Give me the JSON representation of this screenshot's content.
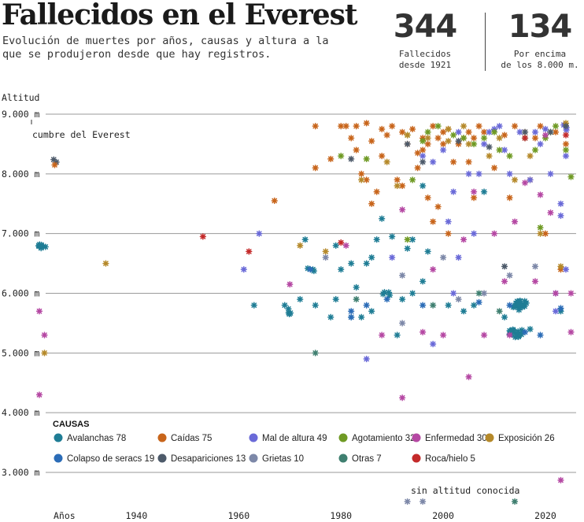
{
  "header": {
    "title": "Fallecidos en el Everest",
    "subtitle": "Evolución de muertes por años, causas y altura a la que se produjeron desde que hay registros."
  },
  "stats": [
    {
      "value": "344",
      "label": "Fallecidos\ndesde 1921"
    },
    {
      "value": "134",
      "label": "Por encima\nde los 8.000 m."
    }
  ],
  "colors": {
    "Avalanchas": "#1f7d95",
    "Caídas": "#c8651b",
    "Mal de altura": "#6a6ad8",
    "Agotamiento": "#6f9a24",
    "Enfermedad": "#b548a3",
    "Exposición": "#b5892a",
    "Colapso de seracs": "#2b6cb7",
    "Desapariciones": "#4d5a6a",
    "Grietas": "#7d88a8",
    "Otras": "#3f7f70",
    "Roca/hielo": "#c42a2a"
  },
  "chart_data": {
    "type": "scatter",
    "ylabel": "Altitud",
    "y_ticks": [
      "9.000 m",
      "8.000 m",
      "7.000 m",
      "6.000 m",
      "5.000 m",
      "4.000 m",
      "3.000 m"
    ],
    "x_ticks": [
      "Años",
      "1940",
      "1960",
      "1980",
      "2000",
      "2020"
    ],
    "ylim": [
      2700,
      9100
    ],
    "xlim": [
      1920,
      2027
    ],
    "annotations": {
      "summit": "cumbre del Everest",
      "unknown": "sin altitud conocida"
    },
    "legend_title": "CAUSAS",
    "legend": [
      {
        "name": "Avalanchas",
        "count": "78"
      },
      {
        "name": "Caídas",
        "count": "75"
      },
      {
        "name": "Mal de altura",
        "count": "49"
      },
      {
        "name": "Agotamiento",
        "count": "32"
      },
      {
        "name": "Enfermedad",
        "count": "30"
      },
      {
        "name": "Exposición",
        "count": "26"
      },
      {
        "name": "Colapso de seracs",
        "count": "19"
      },
      {
        "name": "Desapariciones",
        "count": "13"
      },
      {
        "name": "Grietas",
        "count": "10"
      },
      {
        "name": "Otras",
        "count": "7"
      },
      {
        "name": "Roca/hielo",
        "count": "5"
      }
    ],
    "clusters": [
      {
        "cause": "Avalanchas",
        "x": 1921.5,
        "y": 6800,
        "n": 7
      },
      {
        "cause": "Avalanchas",
        "x": 2014,
        "y": 5350,
        "n": 16
      },
      {
        "cause": "Avalanchas",
        "x": 2015,
        "y": 5800,
        "n": 18
      },
      {
        "cause": "Avalanchas",
        "x": 1970,
        "y": 5700,
        "n": 4
      },
      {
        "cause": "Avalanchas",
        "x": 1974,
        "y": 6400,
        "n": 3
      },
      {
        "cause": "Avalanchas",
        "x": 1989,
        "y": 6000,
        "n": 4
      },
      {
        "cause": "Desapariciones",
        "x": 1924,
        "y": 8200,
        "n": 2
      },
      {
        "cause": "Mal de altura",
        "x": 2024,
        "y": 8780,
        "n": 4
      }
    ],
    "points": [
      [
        "Avalanchas",
        1979,
        6800
      ],
      [
        "Avalanchas",
        1982,
        5600
      ],
      [
        "Avalanchas",
        1985,
        6500
      ],
      [
        "Avalanchas",
        1986,
        6600
      ],
      [
        "Avalanchas",
        1987,
        6900
      ],
      [
        "Avalanchas",
        1988,
        7250
      ],
      [
        "Avalanchas",
        1990,
        6950
      ],
      [
        "Avalanchas",
        1993,
        6750
      ],
      [
        "Avalanchas",
        1994,
        6900
      ],
      [
        "Avalanchas",
        1996,
        7800
      ],
      [
        "Avalanchas",
        1997,
        6700
      ],
      [
        "Avalanchas",
        1982,
        6500
      ],
      [
        "Avalanchas",
        1984,
        5600
      ],
      [
        "Avalanchas",
        1992,
        5900
      ],
      [
        "Avalanchas",
        1996,
        6200
      ],
      [
        "Avalanchas",
        1978,
        5600
      ],
      [
        "Avalanchas",
        1979,
        5900
      ],
      [
        "Avalanchas",
        1980,
        6400
      ],
      [
        "Avalanchas",
        1973,
        6900
      ],
      [
        "Avalanchas",
        1972,
        5900
      ],
      [
        "Avalanchas",
        1975,
        5800
      ],
      [
        "Avalanchas",
        1983,
        6100
      ],
      [
        "Avalanchas",
        1986,
        5700
      ],
      [
        "Avalanchas",
        1991,
        5300
      ],
      [
        "Avalanchas",
        2001,
        5800
      ],
      [
        "Avalanchas",
        2006,
        5800
      ],
      [
        "Avalanchas",
        2008,
        7700
      ],
      [
        "Avalanchas",
        2012,
        5600
      ],
      [
        "Avalanchas",
        2017,
        5400
      ],
      [
        "Avalanchas",
        2023,
        5700
      ],
      [
        "Avalanchas",
        2004,
        5700
      ],
      [
        "Avalanchas",
        1969,
        5800
      ],
      [
        "Avalanchas",
        1963,
        5800
      ],
      [
        "Avalanchas",
        1994,
        6000
      ],
      [
        "Caídas",
        1924,
        8150
      ],
      [
        "Caídas",
        1975,
        8800
      ],
      [
        "Caídas",
        1975,
        8100
      ],
      [
        "Caídas",
        1967,
        7550
      ],
      [
        "Caídas",
        1978,
        8250
      ],
      [
        "Caídas",
        1980,
        8800
      ],
      [
        "Caídas",
        1981,
        8800
      ],
      [
        "Caídas",
        1982,
        8600
      ],
      [
        "Caídas",
        1983,
        8400
      ],
      [
        "Caídas",
        1984,
        8000
      ],
      [
        "Caídas",
        1985,
        8850
      ],
      [
        "Caídas",
        1985,
        7900
      ],
      [
        "Caídas",
        1986,
        7500
      ],
      [
        "Caídas",
        1986,
        8550
      ],
      [
        "Caídas",
        1988,
        8300
      ],
      [
        "Caídas",
        1988,
        8750
      ],
      [
        "Caídas",
        1990,
        8800
      ],
      [
        "Caídas",
        1991,
        7900
      ],
      [
        "Caídas",
        1992,
        8700
      ],
      [
        "Caídas",
        1992,
        7800
      ],
      [
        "Caídas",
        1993,
        8500
      ],
      [
        "Caídas",
        1994,
        8750
      ],
      [
        "Caídas",
        1995,
        8100
      ],
      [
        "Caídas",
        1996,
        8600
      ],
      [
        "Caídas",
        1996,
        8400
      ],
      [
        "Caídas",
        1997,
        8500
      ],
      [
        "Caídas",
        1997,
        7600
      ],
      [
        "Caídas",
        1998,
        8800
      ],
      [
        "Caídas",
        1998,
        7200
      ],
      [
        "Caídas",
        1999,
        8600
      ],
      [
        "Caídas",
        2000,
        8700
      ],
      [
        "Caídas",
        2000,
        8500
      ],
      [
        "Caídas",
        2001,
        8750
      ],
      [
        "Caídas",
        2001,
        7000
      ],
      [
        "Caídas",
        2002,
        8200
      ],
      [
        "Caídas",
        2003,
        8500
      ],
      [
        "Caídas",
        2004,
        8600
      ],
      [
        "Caídas",
        2005,
        8700
      ],
      [
        "Caídas",
        2005,
        8200
      ],
      [
        "Caídas",
        2006,
        8600
      ],
      [
        "Caídas",
        2006,
        7600
      ],
      [
        "Caídas",
        2007,
        8800
      ],
      [
        "Caídas",
        2008,
        8700
      ],
      [
        "Caídas",
        2010,
        8100
      ],
      [
        "Caídas",
        2012,
        8650
      ],
      [
        "Caídas",
        2013,
        7600
      ],
      [
        "Caídas",
        2014,
        8800
      ],
      [
        "Caídas",
        2016,
        8700
      ],
      [
        "Caídas",
        2017,
        7900
      ],
      [
        "Caídas",
        2018,
        8600
      ],
      [
        "Caídas",
        2019,
        8800
      ],
      [
        "Caídas",
        2020,
        7000
      ],
      [
        "Caídas",
        2022,
        8700
      ],
      [
        "Caídas",
        2023,
        6400
      ],
      [
        "Caídas",
        2024,
        8500
      ],
      [
        "Caídas",
        1983,
        8800
      ],
      [
        "Caídas",
        1987,
        7700
      ],
      [
        "Caídas",
        1989,
        8650
      ],
      [
        "Caídas",
        1995,
        8350
      ],
      [
        "Caídas",
        1999,
        7450
      ],
      [
        "Mal de altura",
        1961,
        6400
      ],
      [
        "Mal de altura",
        1964,
        7000
      ],
      [
        "Mal de altura",
        1996,
        8300
      ],
      [
        "Mal de altura",
        1998,
        8200
      ],
      [
        "Mal de altura",
        2000,
        8400
      ],
      [
        "Mal de altura",
        2002,
        7700
      ],
      [
        "Mal de altura",
        2003,
        8700
      ],
      [
        "Mal de altura",
        2005,
        8000
      ],
      [
        "Mal de altura",
        2006,
        7000
      ],
      [
        "Mal de altura",
        2007,
        8000
      ],
      [
        "Mal de altura",
        2008,
        8500
      ],
      [
        "Mal de altura",
        2009,
        8700
      ],
      [
        "Mal de altura",
        2010,
        8750
      ],
      [
        "Mal de altura",
        2011,
        8800
      ],
      [
        "Mal de altura",
        2012,
        8400
      ],
      [
        "Mal de altura",
        2013,
        8000
      ],
      [
        "Mal de altura",
        2015,
        8700
      ],
      [
        "Mal de altura",
        2016,
        8600
      ],
      [
        "Mal de altura",
        2017,
        7900
      ],
      [
        "Mal de altura",
        2018,
        8700
      ],
      [
        "Mal de altura",
        2019,
        8500
      ],
      [
        "Mal de altura",
        2020,
        8750
      ],
      [
        "Mal de altura",
        2021,
        8000
      ],
      [
        "Mal de altura",
        2022,
        5700
      ],
      [
        "Mal de altura",
        2023,
        7500
      ],
      [
        "Mal de altura",
        2023,
        7300
      ],
      [
        "Mal de altura",
        2024,
        6400
      ],
      [
        "Mal de altura",
        2024,
        8300
      ],
      [
        "Mal de altura",
        2002,
        6000
      ],
      [
        "Mal de altura",
        1998,
        5150
      ],
      [
        "Mal de altura",
        1990,
        6600
      ],
      [
        "Mal de altura",
        1985,
        4900
      ],
      [
        "Mal de altura",
        2001,
        7200
      ],
      [
        "Mal de altura",
        2022,
        6000
      ],
      [
        "Mal de altura",
        2003,
        6600
      ],
      [
        "Agotamiento",
        1980,
        8300
      ],
      [
        "Agotamiento",
        1993,
        8650
      ],
      [
        "Agotamiento",
        1996,
        8550
      ],
      [
        "Agotamiento",
        1997,
        8700
      ],
      [
        "Agotamiento",
        1999,
        8800
      ],
      [
        "Agotamiento",
        2002,
        8650
      ],
      [
        "Agotamiento",
        2004,
        8600
      ],
      [
        "Agotamiento",
        2006,
        8500
      ],
      [
        "Agotamiento",
        2008,
        8600
      ],
      [
        "Agotamiento",
        2010,
        8700
      ],
      [
        "Agotamiento",
        2011,
        8400
      ],
      [
        "Agotamiento",
        2013,
        8300
      ],
      [
        "Agotamiento",
        2016,
        8600
      ],
      [
        "Agotamiento",
        2018,
        8400
      ],
      [
        "Agotamiento",
        2019,
        7100
      ],
      [
        "Agotamiento",
        2020,
        8600
      ],
      [
        "Agotamiento",
        2021,
        8700
      ],
      [
        "Agotamiento",
        2024,
        8400
      ],
      [
        "Agotamiento",
        2025,
        7950
      ],
      [
        "Agotamiento",
        2022,
        8800
      ],
      [
        "Agotamiento",
        1994,
        7900
      ],
      [
        "Agotamiento",
        1985,
        8250
      ],
      [
        "Agotamiento",
        1993,
        6900
      ],
      [
        "Enfermedad",
        1921,
        5700
      ],
      [
        "Enfermedad",
        1921,
        4300
      ],
      [
        "Enfermedad",
        1922,
        5300
      ],
      [
        "Enfermedad",
        1970,
        6150
      ],
      [
        "Enfermedad",
        1981,
        6800
      ],
      [
        "Enfermedad",
        1988,
        5300
      ],
      [
        "Enfermedad",
        1992,
        4250
      ],
      [
        "Enfermedad",
        1992,
        7400
      ],
      [
        "Enfermedad",
        1996,
        5350
      ],
      [
        "Enfermedad",
        2000,
        5300
      ],
      [
        "Enfermedad",
        2005,
        4600
      ],
      [
        "Enfermedad",
        2006,
        7700
      ],
      [
        "Enfermedad",
        2008,
        5300
      ],
      [
        "Enfermedad",
        2010,
        7000
      ],
      [
        "Enfermedad",
        2012,
        6200
      ],
      [
        "Enfermedad",
        2013,
        5300
      ],
      [
        "Enfermedad",
        2014,
        7200
      ],
      [
        "Enfermedad",
        2016,
        7850
      ],
      [
        "Enfermedad",
        2018,
        6200
      ],
      [
        "Enfermedad",
        2019,
        7650
      ],
      [
        "Enfermedad",
        2020,
        8650
      ],
      [
        "Enfermedad",
        2021,
        7350
      ],
      [
        "Enfermedad",
        2022,
        6000
      ],
      [
        "Enfermedad",
        2023,
        2870
      ],
      [
        "Enfermedad",
        2025,
        6000
      ],
      [
        "Enfermedad",
        2025,
        5350
      ],
      [
        "Enfermedad",
        2004,
        6900
      ],
      [
        "Enfermedad",
        1998,
        6400
      ],
      [
        "Exposición",
        1922,
        5000
      ],
      [
        "Exposición",
        1934,
        6500
      ],
      [
        "Exposición",
        1972,
        6800
      ],
      [
        "Exposición",
        1977,
        6700
      ],
      [
        "Exposición",
        1984,
        7900
      ],
      [
        "Exposición",
        1989,
        8200
      ],
      [
        "Exposición",
        1991,
        7800
      ],
      [
        "Exposición",
        1993,
        8650
      ],
      [
        "Exposición",
        1997,
        8600
      ],
      [
        "Exposición",
        2001,
        8550
      ],
      [
        "Exposición",
        2004,
        8800
      ],
      [
        "Exposición",
        2005,
        8500
      ],
      [
        "Exposición",
        2009,
        8300
      ],
      [
        "Exposición",
        2011,
        8600
      ],
      [
        "Exposición",
        2014,
        7900
      ],
      [
        "Exposición",
        2017,
        8300
      ],
      [
        "Exposición",
        2019,
        7000
      ],
      [
        "Exposición",
        2023,
        6450
      ],
      [
        "Exposición",
        2024,
        8850
      ],
      [
        "Exposición",
        2001,
        8750
      ],
      [
        "Colapso de seracs",
        1974,
        6400
      ],
      [
        "Colapso de seracs",
        1982,
        5700
      ],
      [
        "Colapso de seracs",
        1982,
        5600
      ],
      [
        "Colapso de seracs",
        1985,
        5800
      ],
      [
        "Colapso de seracs",
        1989,
        5900
      ],
      [
        "Colapso de seracs",
        1996,
        5800
      ],
      [
        "Colapso de seracs",
        2007,
        5850
      ],
      [
        "Colapso de seracs",
        2013,
        5800
      ],
      [
        "Colapso de seracs",
        2016,
        5350
      ],
      [
        "Colapso de seracs",
        2019,
        5300
      ],
      [
        "Colapso de seracs",
        2023,
        5750
      ],
      [
        "Desapariciones",
        1982,
        8250
      ],
      [
        "Desapariciones",
        1993,
        8500
      ],
      [
        "Desapariciones",
        1996,
        8200
      ],
      [
        "Desapariciones",
        2003,
        8550
      ],
      [
        "Desapariciones",
        2009,
        8450
      ],
      [
        "Desapariciones",
        2012,
        6450
      ],
      [
        "Desapariciones",
        2016,
        8700
      ],
      [
        "Desapariciones",
        2021,
        8700
      ],
      [
        "Desapariciones",
        2024,
        8800
      ],
      [
        "Grietas",
        1977,
        6600
      ],
      [
        "Grietas",
        1992,
        6300
      ],
      [
        "Grietas",
        1992,
        5500
      ],
      [
        "Grietas",
        2000,
        6600
      ],
      [
        "Grietas",
        2003,
        5900
      ],
      [
        "Grietas",
        2008,
        6000
      ],
      [
        "Grietas",
        2013,
        6300
      ],
      [
        "Grietas",
        2018,
        6450
      ],
      [
        "Grietas",
        1993,
        2530
      ],
      [
        "Grietas",
        1996,
        2530
      ],
      [
        "Otras",
        1975,
        5000
      ],
      [
        "Otras",
        1983,
        5900
      ],
      [
        "Otras",
        1998,
        5800
      ],
      [
        "Otras",
        2007,
        6000
      ],
      [
        "Otras",
        2011,
        5700
      ],
      [
        "Otras",
        2014,
        2530
      ],
      [
        "Roca/hielo",
        1953,
        6950
      ],
      [
        "Roca/hielo",
        1962,
        6700
      ],
      [
        "Roca/hielo",
        1980,
        6850
      ],
      [
        "Roca/hielo",
        2016,
        8600
      ],
      [
        "Roca/hielo",
        2024,
        8650
      ]
    ]
  }
}
